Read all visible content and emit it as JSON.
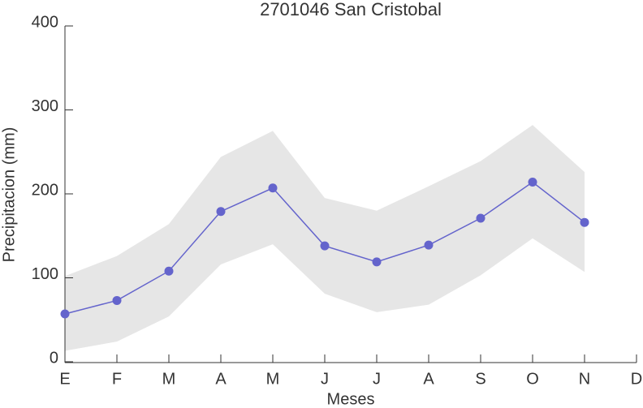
{
  "chart_data": {
    "type": "line",
    "title": "2701046 San Cristobal",
    "x_label": "Meses",
    "y_label": "Precipitacion (mm)",
    "categories": [
      "E",
      "F",
      "M",
      "A",
      "M",
      "J",
      "J",
      "A",
      "S",
      "O",
      "N",
      "D"
    ],
    "values": [
      57,
      73,
      108,
      179,
      207,
      138,
      119,
      139,
      171,
      214,
      166,
      null
    ],
    "band_upper": [
      102,
      126,
      164,
      244,
      275,
      195,
      180,
      209,
      239,
      282,
      226,
      null
    ],
    "band_lower": [
      13,
      24,
      54,
      116,
      140,
      81,
      59,
      68,
      103,
      147,
      107,
      null
    ],
    "color": "#6464cc",
    "band_color": "#e6e6e6",
    "ylim": [
      0,
      400
    ],
    "yticks": [
      0,
      100,
      200,
      300,
      400
    ]
  }
}
